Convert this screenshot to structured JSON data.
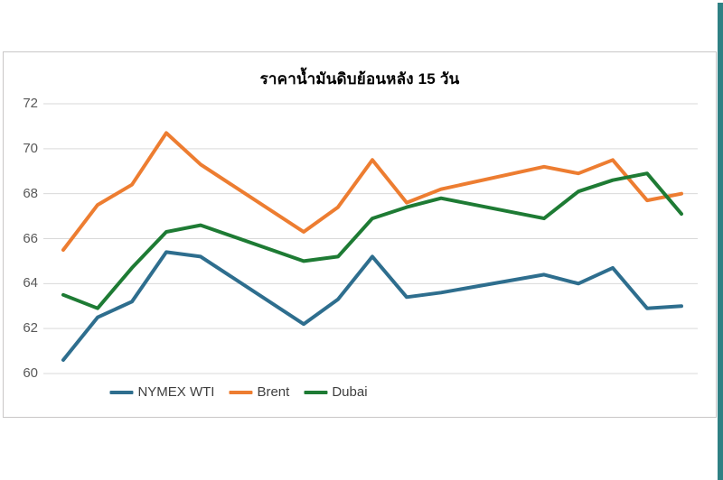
{
  "page": {
    "background": "#ffffff",
    "accent_strip_color": "#2f8184"
  },
  "chart_data": {
    "type": "line",
    "title": "ราคาน้ำมันดิบย้อนหลัง 15 วัน",
    "xlabel": "",
    "ylabel": "",
    "ylim": [
      60,
      72
    ],
    "y_ticks": [
      "72",
      "70",
      "68",
      "66",
      "64",
      "62",
      "60"
    ],
    "y_tick_values": [
      72,
      70,
      68,
      66,
      64,
      62,
      60
    ],
    "grid": true,
    "x_tick_labels_shown": false,
    "points_count": 15,
    "x_slots": [
      0,
      1,
      2,
      3,
      4,
      7,
      8,
      9,
      10,
      11,
      14,
      15,
      16,
      17,
      18
    ],
    "x_axis_layout_note": "15 daily values on a date-scaled axis with weekend gaps (slots 5-6 and 12-13 empty)",
    "legend_position": "bottom-center",
    "series": [
      {
        "name": "NYMEX WTI",
        "color": "#2e6e8e",
        "values": [
          60.6,
          62.5,
          63.2,
          65.4,
          65.2,
          62.2,
          63.3,
          65.2,
          63.4,
          63.6,
          64.4,
          64.0,
          64.7,
          62.9,
          63.0
        ]
      },
      {
        "name": "Brent",
        "color": "#ed7d31",
        "values": [
          65.5,
          67.5,
          68.4,
          70.7,
          69.3,
          66.3,
          67.4,
          69.5,
          67.6,
          68.2,
          69.2,
          68.9,
          69.5,
          67.7,
          68.0
        ]
      },
      {
        "name": "Dubai",
        "color": "#1e7b34",
        "values": [
          63.5,
          62.9,
          64.7,
          66.3,
          66.6,
          65.0,
          65.2,
          66.9,
          67.4,
          67.8,
          66.9,
          68.1,
          68.6,
          68.9,
          67.1
        ]
      }
    ],
    "style": {
      "gridline_color": "#d9d9d9",
      "tick_label_color": "#595959",
      "legend_text_color": "#3f3f3f",
      "chart_border_color": "#c9c7c7",
      "line_width": 4
    }
  }
}
